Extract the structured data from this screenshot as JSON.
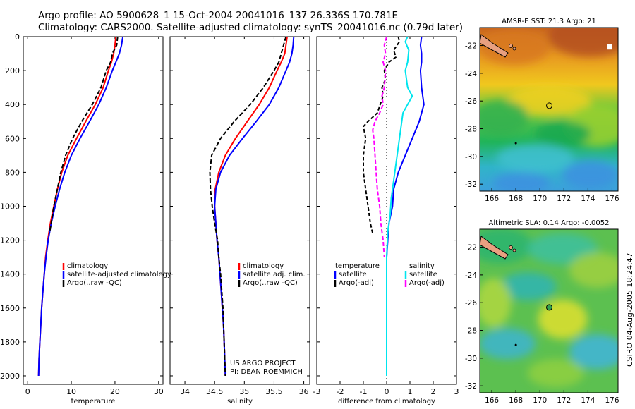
{
  "header": {
    "line1": "Argo profile: AO 5900628_1 15-Oct-2004 20041016_137 26.336S 170.781E",
    "line2": "Climatology: CARS2000. Satellite-adjusted climatology: synTS_20041016.nc (0.79d later)"
  },
  "side_label": "CSIRO 04-Aug-2005 18:24:47",
  "credit": {
    "line1": "US ARGO PROJECT",
    "line2": "PI: DEAN ROEMMICH"
  },
  "colors": {
    "climatology": "#ff0000",
    "satellite": "#0000ff",
    "argo": "#000000",
    "satellite_sal": "#00e5ee",
    "argo_sal": "#ff00ff"
  },
  "chart_data": [
    {
      "type": "line",
      "xlabel": "temperature",
      "xlim": [
        -1,
        31
      ],
      "ylim": [
        2050,
        0
      ],
      "xticks": [
        0,
        10,
        20,
        30
      ],
      "yticks": [
        0,
        200,
        400,
        600,
        800,
        1000,
        1200,
        1400,
        1600,
        1800,
        2000
      ],
      "legend": [
        "climatology",
        "satellite-adjusted climatology",
        "Argo(..raw -QC)"
      ],
      "series": [
        {
          "name": "climatology",
          "color": "#ff0000",
          "dash": "",
          "points": [
            [
              20.2,
              0
            ],
            [
              20,
              50
            ],
            [
              19.7,
              100
            ],
            [
              19.2,
              150
            ],
            [
              18.5,
              200
            ],
            [
              17.3,
              300
            ],
            [
              15.5,
              400
            ],
            [
              13.3,
              500
            ],
            [
              11.2,
              600
            ],
            [
              9.2,
              700
            ],
            [
              7.8,
              800
            ],
            [
              6.8,
              900
            ],
            [
              6,
              1000
            ],
            [
              5.2,
              1100
            ],
            [
              4.6,
              1200
            ],
            [
              4.1,
              1300
            ],
            [
              3.8,
              1400
            ],
            [
              3.5,
              1500
            ],
            [
              3.2,
              1600
            ],
            [
              3,
              1700
            ],
            [
              2.8,
              1800
            ],
            [
              2.6,
              1900
            ],
            [
              2.5,
              2000
            ]
          ]
        },
        {
          "name": "satellite-adjusted climatology",
          "color": "#0000ff",
          "dash": "",
          "points": [
            [
              21.8,
              0
            ],
            [
              21.5,
              50
            ],
            [
              21,
              100
            ],
            [
              20.2,
              150
            ],
            [
              19.4,
              200
            ],
            [
              18,
              300
            ],
            [
              16.3,
              400
            ],
            [
              14.2,
              500
            ],
            [
              12,
              600
            ],
            [
              10,
              700
            ],
            [
              8.5,
              800
            ],
            [
              7.3,
              900
            ],
            [
              6.3,
              1000
            ],
            [
              5.4,
              1100
            ],
            [
              4.7,
              1200
            ],
            [
              4.2,
              1300
            ],
            [
              3.8,
              1400
            ],
            [
              3.5,
              1500
            ],
            [
              3.2,
              1600
            ],
            [
              3,
              1700
            ],
            [
              2.8,
              1800
            ],
            [
              2.6,
              1900
            ],
            [
              2.5,
              2000
            ]
          ]
        },
        {
          "name": "Argo(..raw -QC)",
          "color": "#000000",
          "dash": "6,3",
          "points": [
            [
              20.6,
              0
            ],
            [
              20.4,
              50
            ],
            [
              19.4,
              100
            ],
            [
              19,
              150
            ],
            [
              18,
              200
            ],
            [
              16.8,
              300
            ],
            [
              14.8,
              400
            ],
            [
              12.4,
              500
            ],
            [
              10.3,
              600
            ],
            [
              8.7,
              700
            ],
            [
              7.6,
              800
            ],
            [
              6.8,
              900
            ],
            [
              6,
              1000
            ],
            [
              5.4,
              1100
            ],
            [
              5,
              1160
            ]
          ]
        }
      ]
    },
    {
      "type": "line",
      "xlabel": "salinity",
      "xlim": [
        33.75,
        36.1
      ],
      "ylim": [
        2050,
        0
      ],
      "xticks": [
        34,
        34.5,
        35,
        35.5,
        36
      ],
      "legend": [
        "climatology",
        "satellite adj. clim.",
        "Argo(..raw -QC)"
      ],
      "series": [
        {
          "name": "climatology",
          "color": "#ff0000",
          "dash": "",
          "points": [
            [
              35.72,
              0
            ],
            [
              35.7,
              50
            ],
            [
              35.68,
              100
            ],
            [
              35.62,
              150
            ],
            [
              35.55,
              200
            ],
            [
              35.42,
              300
            ],
            [
              35.25,
              400
            ],
            [
              35.05,
              500
            ],
            [
              34.85,
              600
            ],
            [
              34.68,
              700
            ],
            [
              34.57,
              800
            ],
            [
              34.51,
              900
            ],
            [
              34.5,
              1000
            ],
            [
              34.52,
              1100
            ],
            [
              34.54,
              1200
            ],
            [
              34.57,
              1300
            ],
            [
              34.59,
              1400
            ],
            [
              34.61,
              1500
            ],
            [
              34.63,
              1600
            ],
            [
              34.65,
              1700
            ],
            [
              34.66,
              1800
            ],
            [
              34.67,
              1900
            ],
            [
              34.68,
              2000
            ]
          ]
        },
        {
          "name": "satellite adj. clim.",
          "color": "#0000ff",
          "dash": "",
          "points": [
            [
              35.83,
              0
            ],
            [
              35.82,
              50
            ],
            [
              35.8,
              100
            ],
            [
              35.76,
              150
            ],
            [
              35.7,
              200
            ],
            [
              35.58,
              300
            ],
            [
              35.42,
              400
            ],
            [
              35.2,
              500
            ],
            [
              34.97,
              600
            ],
            [
              34.75,
              700
            ],
            [
              34.6,
              800
            ],
            [
              34.52,
              900
            ],
            [
              34.5,
              1000
            ],
            [
              34.52,
              1100
            ],
            [
              34.54,
              1200
            ],
            [
              34.57,
              1300
            ],
            [
              34.59,
              1400
            ],
            [
              34.61,
              1500
            ],
            [
              34.63,
              1600
            ],
            [
              34.65,
              1700
            ],
            [
              34.66,
              1800
            ],
            [
              34.67,
              1900
            ],
            [
              34.68,
              2000
            ]
          ]
        },
        {
          "name": "Argo(..raw -QC)",
          "color": "#000000",
          "dash": "6,3",
          "points": [
            [
              35.7,
              0
            ],
            [
              35.66,
              50
            ],
            [
              35.62,
              100
            ],
            [
              35.58,
              150
            ],
            [
              35.5,
              200
            ],
            [
              35.32,
              300
            ],
            [
              35.1,
              400
            ],
            [
              34.83,
              500
            ],
            [
              34.6,
              600
            ],
            [
              34.45,
              700
            ],
            [
              34.42,
              800
            ],
            [
              34.43,
              900
            ],
            [
              34.46,
              1000
            ],
            [
              34.5,
              1100
            ],
            [
              34.55,
              1200
            ],
            [
              34.57,
              1300
            ],
            [
              34.6,
              1400
            ],
            [
              34.62,
              1500
            ],
            [
              34.64,
              1600
            ],
            [
              34.65,
              1700
            ],
            [
              34.66,
              1800
            ],
            [
              34.67,
              1900
            ],
            [
              34.68,
              2000
            ]
          ]
        }
      ]
    },
    {
      "type": "line",
      "xlabel": "difference from climatology",
      "xlim": [
        -3,
        3
      ],
      "ylim": [
        2050,
        0
      ],
      "xticks": [
        -3,
        -2,
        -1,
        0,
        1,
        2,
        3
      ],
      "legend_left": [
        "temperature",
        "satellite",
        "Argo(-adj)"
      ],
      "legend_right": [
        "salinity",
        "satellite",
        "Argo(-adj)"
      ],
      "series": [
        {
          "name": "satellite",
          "color": "#0000ff",
          "dash": "",
          "points": [
            [
              1.5,
              0
            ],
            [
              1.45,
              50
            ],
            [
              1.5,
              100
            ],
            [
              1.5,
              150
            ],
            [
              1.45,
              200
            ],
            [
              1.5,
              300
            ],
            [
              1.6,
              400
            ],
            [
              1.4,
              500
            ],
            [
              1.1,
              600
            ],
            [
              0.8,
              700
            ],
            [
              0.5,
              800
            ],
            [
              0.3,
              900
            ],
            [
              0.25,
              1000
            ],
            [
              0.1,
              1100
            ],
            [
              0.05,
              1200
            ],
            [
              0,
              1300
            ],
            [
              0,
              2000
            ]
          ]
        },
        {
          "name": "Argo(-adj)",
          "color": "#000000",
          "dash": "5,3",
          "points": [
            [
              0.5,
              0
            ],
            [
              0.55,
              30
            ],
            [
              0.3,
              80
            ],
            [
              0.4,
              120
            ],
            [
              0.1,
              150
            ],
            [
              -0.1,
              200
            ],
            [
              -0.05,
              250
            ],
            [
              -0.2,
              300
            ],
            [
              -0.15,
              350
            ],
            [
              -0.4,
              450
            ],
            [
              -0.8,
              500
            ],
            [
              -1.0,
              530
            ],
            [
              -0.9,
              600
            ],
            [
              -1.0,
              700
            ],
            [
              -1.0,
              800
            ],
            [
              -0.9,
              900
            ],
            [
              -0.8,
              1000
            ],
            [
              -0.7,
              1100
            ],
            [
              -0.6,
              1160
            ]
          ]
        },
        {
          "name": "salinity satellite",
          "color": "#00e5ee",
          "dash": "",
          "points": [
            [
              0.9,
              0
            ],
            [
              0.8,
              30
            ],
            [
              0.95,
              80
            ],
            [
              0.9,
              150
            ],
            [
              0.8,
              200
            ],
            [
              0.9,
              300
            ],
            [
              1.1,
              350
            ],
            [
              0.9,
              400
            ],
            [
              0.7,
              450
            ],
            [
              0.6,
              550
            ],
            [
              0.5,
              650
            ],
            [
              0.4,
              750
            ],
            [
              0.3,
              850
            ],
            [
              0.2,
              950
            ],
            [
              0.15,
              1050
            ],
            [
              0.05,
              1150
            ],
            [
              0,
              1300
            ],
            [
              0,
              2000
            ]
          ]
        },
        {
          "name": "salinity Argo(-adj)",
          "color": "#ff00ff",
          "dash": "6,3",
          "points": [
            [
              0,
              0
            ],
            [
              -0.1,
              50
            ],
            [
              -0.05,
              100
            ],
            [
              -0.15,
              150
            ],
            [
              -0.05,
              200
            ],
            [
              -0.1,
              300
            ],
            [
              -0.2,
              350
            ],
            [
              -0.15,
              400
            ],
            [
              -0.3,
              450
            ],
            [
              -0.5,
              500
            ],
            [
              -0.6,
              550
            ],
            [
              -0.55,
              600
            ],
            [
              -0.5,
              700
            ],
            [
              -0.45,
              800
            ],
            [
              -0.4,
              900
            ],
            [
              -0.3,
              1000
            ],
            [
              -0.25,
              1100
            ],
            [
              -0.15,
              1200
            ],
            [
              -0.1,
              1300
            ]
          ]
        }
      ]
    },
    {
      "type": "heatmap",
      "title": "AMSR-E SST: 21.3 Argo: 21",
      "xlim": [
        165,
        176.5
      ],
      "ylim": [
        -32.5,
        -20.7
      ],
      "xticks": [
        166,
        168,
        170,
        172,
        174,
        176
      ],
      "yticks": [
        -22,
        -24,
        -26,
        -28,
        -30,
        -32
      ],
      "marker": [
        170.78,
        -26.34
      ]
    },
    {
      "type": "heatmap",
      "title": "Altimetric SLA: 0.14 Argo: -0.0052",
      "xlim": [
        165,
        176.5
      ],
      "ylim": [
        -32.5,
        -20.7
      ],
      "xticks": [
        166,
        168,
        170,
        172,
        174,
        176
      ],
      "yticks": [
        -22,
        -24,
        -26,
        -28,
        -30,
        -32
      ],
      "marker": [
        170.78,
        -26.34
      ]
    }
  ]
}
